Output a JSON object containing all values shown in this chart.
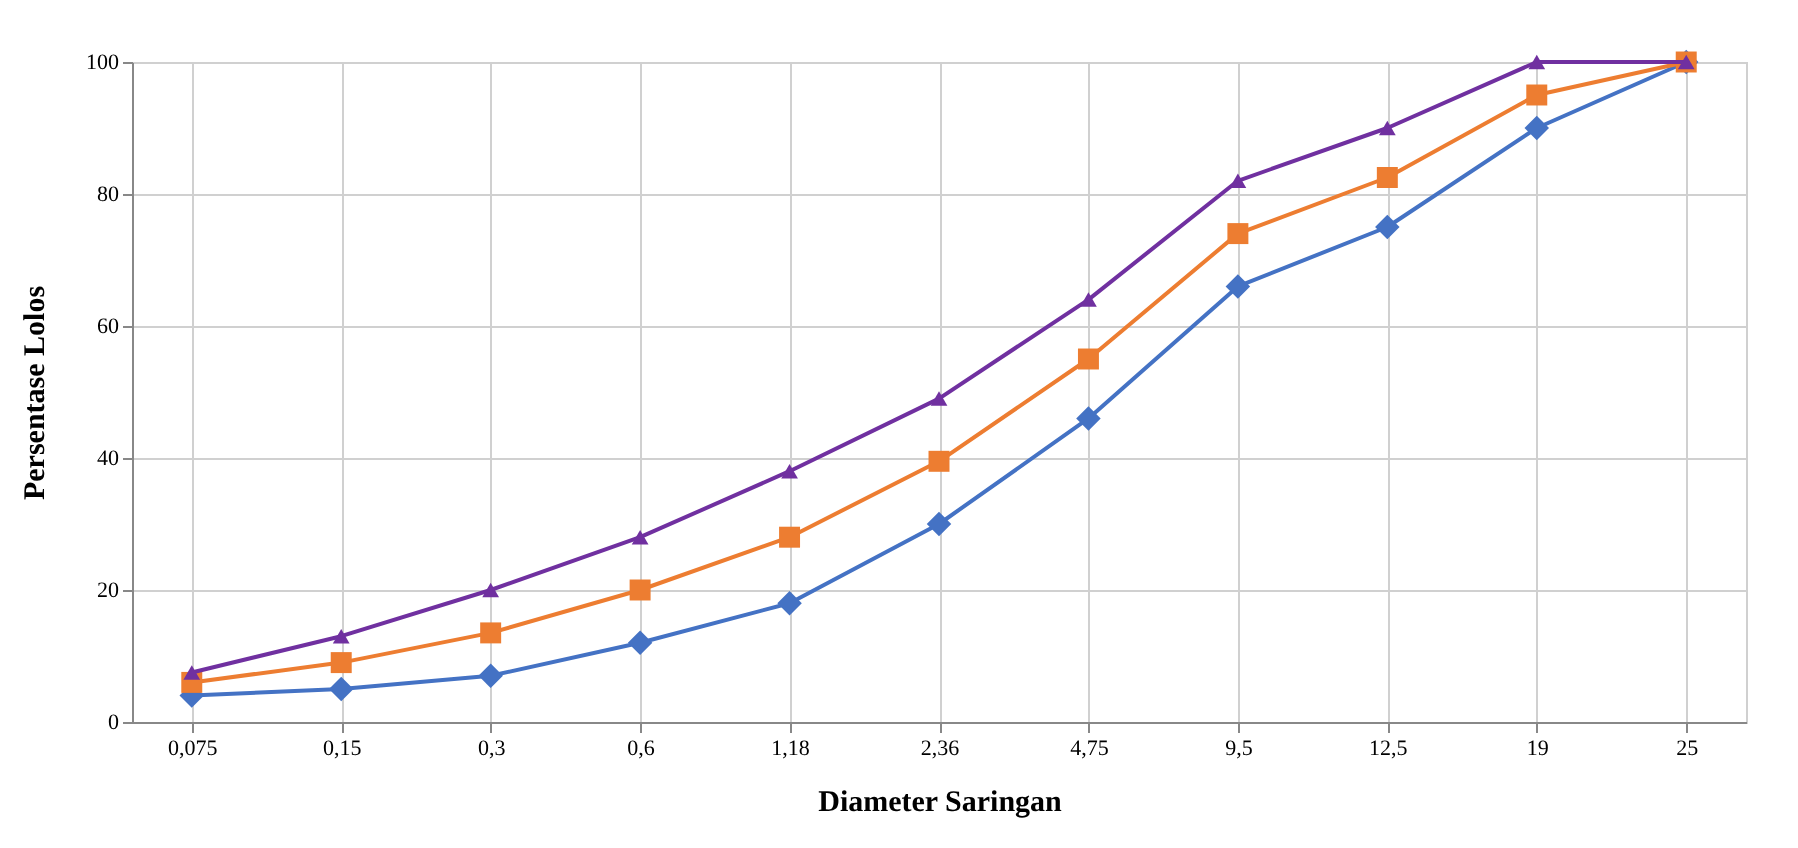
{
  "chart_data": {
    "type": "line",
    "xlabel": "Diameter Saringan",
    "ylabel": "Persentase Lolos",
    "categories": [
      "0,075",
      "0,15",
      "0,3",
      "0,6",
      "1,18",
      "2,36",
      "4,75",
      "9,5",
      "12,5",
      "19",
      "25"
    ],
    "ylim": [
      0,
      100
    ],
    "yticks": [
      0,
      20,
      40,
      60,
      80,
      100
    ],
    "grid": true,
    "series": [
      {
        "color": "#4472c4",
        "marker": "diamond",
        "values": [
          4,
          5,
          7,
          12,
          18,
          30,
          46,
          66,
          75,
          90,
          100
        ]
      },
      {
        "color": "#ed7d31",
        "marker": "square",
        "values": [
          6,
          9,
          13.5,
          20,
          28,
          39.5,
          55,
          74,
          82.5,
          95,
          100
        ]
      },
      {
        "color": "#7030a0",
        "marker": "triangle",
        "values": [
          7.5,
          13,
          20,
          28,
          38,
          49,
          64,
          82,
          90,
          100,
          100
        ]
      }
    ]
  }
}
